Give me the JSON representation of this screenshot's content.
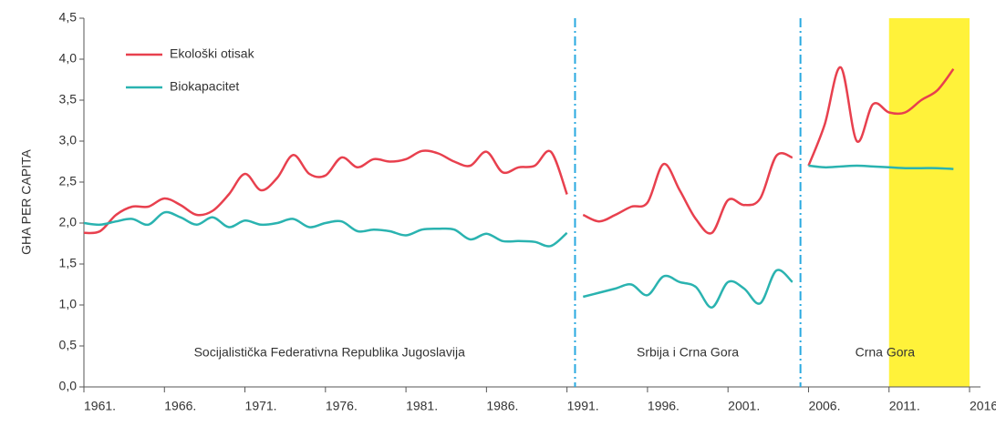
{
  "chart_data": {
    "type": "line",
    "y_label": "GHA PER CAPITA",
    "x": [
      1961,
      1962,
      1963,
      1964,
      1965,
      1966,
      1967,
      1968,
      1969,
      1970,
      1971,
      1972,
      1973,
      1974,
      1975,
      1976,
      1977,
      1978,
      1979,
      1980,
      1981,
      1982,
      1983,
      1984,
      1985,
      1986,
      1987,
      1988,
      1989,
      1990,
      1991,
      1992,
      1993,
      1994,
      1995,
      1996,
      1997,
      1998,
      1999,
      2000,
      2001,
      2002,
      2003,
      2004,
      2005,
      2006,
      2007,
      2008,
      2009,
      2010,
      2011,
      2012,
      2013,
      2014,
      2015
    ],
    "series": [
      {
        "name": "Ekološki otisak",
        "color": "#e8404e",
        "values": [
          1.88,
          1.9,
          2.1,
          2.2,
          2.2,
          2.3,
          2.22,
          2.1,
          2.15,
          2.35,
          2.6,
          2.4,
          2.55,
          2.83,
          2.6,
          2.58,
          2.8,
          2.68,
          2.78,
          2.75,
          2.78,
          2.88,
          2.85,
          2.75,
          2.7,
          2.87,
          2.62,
          2.68,
          2.7,
          2.87,
          2.35,
          2.1,
          2.02,
          2.1,
          2.2,
          2.25,
          2.72,
          2.4,
          2.05,
          1.88,
          2.28,
          2.22,
          2.3,
          2.82,
          2.8,
          2.7,
          3.2,
          3.9,
          3.0,
          3.45,
          3.35,
          3.35,
          3.5,
          3.62,
          3.88
        ]
      },
      {
        "name": "Biokapacitet",
        "color": "#2ab3b0",
        "values": [
          2.0,
          1.98,
          2.02,
          2.05,
          1.98,
          2.13,
          2.07,
          1.98,
          2.07,
          1.95,
          2.03,
          1.98,
          2.0,
          2.05,
          1.95,
          2.0,
          2.02,
          1.9,
          1.92,
          1.9,
          1.85,
          1.92,
          1.93,
          1.92,
          1.8,
          1.87,
          1.78,
          1.78,
          1.77,
          1.72,
          1.88,
          1.1,
          1.15,
          1.2,
          1.25,
          1.12,
          1.35,
          1.28,
          1.22,
          0.97,
          1.28,
          1.2,
          1.02,
          1.42,
          1.28,
          2.7,
          2.68,
          2.69,
          2.7,
          2.69,
          2.68,
          2.67,
          2.67,
          2.67,
          2.66
        ]
      }
    ],
    "periods": [
      {
        "label": "Socijalistička Federativna Republika Jugoslavija",
        "from": 1961,
        "to": 1991
      },
      {
        "label": "Srbija i Crna Gora",
        "from": 1992,
        "to": 2005
      },
      {
        "label": "Crna Gora",
        "from": 2006,
        "to": 2015
      }
    ],
    "highlight": [
      2011,
      2016
    ],
    "highlight_color": "#fff23a",
    "divider_color": "#29a9e0",
    "xlim": [
      1961,
      2016
    ],
    "xticks": [
      {
        "value": 1961,
        "label": "1961."
      },
      {
        "value": 1966,
        "label": "1966."
      },
      {
        "value": 1971,
        "label": "1971."
      },
      {
        "value": 1976,
        "label": "1976."
      },
      {
        "value": 1981,
        "label": "1981."
      },
      {
        "value": 1986,
        "label": "1986."
      },
      {
        "value": 1991,
        "label": "1991."
      },
      {
        "value": 1996,
        "label": "1996."
      },
      {
        "value": 2001,
        "label": "2001."
      },
      {
        "value": 2006,
        "label": "2006."
      },
      {
        "value": 2011,
        "label": "2011."
      },
      {
        "value": 2016,
        "label": "2016."
      }
    ],
    "ylim": [
      0,
      4.5
    ],
    "yticks": [
      {
        "value": 0,
        "label": "0,0"
      },
      {
        "value": 0.5,
        "label": "0,5"
      },
      {
        "value": 1,
        "label": "1,0"
      },
      {
        "value": 1.5,
        "label": "1,5"
      },
      {
        "value": 2,
        "label": "2,0"
      },
      {
        "value": 2.5,
        "label": "2,5"
      },
      {
        "value": 3,
        "label": "3,0"
      },
      {
        "value": 3.5,
        "label": "3,5"
      },
      {
        "value": 4,
        "label": "4,0"
      },
      {
        "value": 4.5,
        "label": "4,5"
      }
    ],
    "legend": "upper left"
  }
}
